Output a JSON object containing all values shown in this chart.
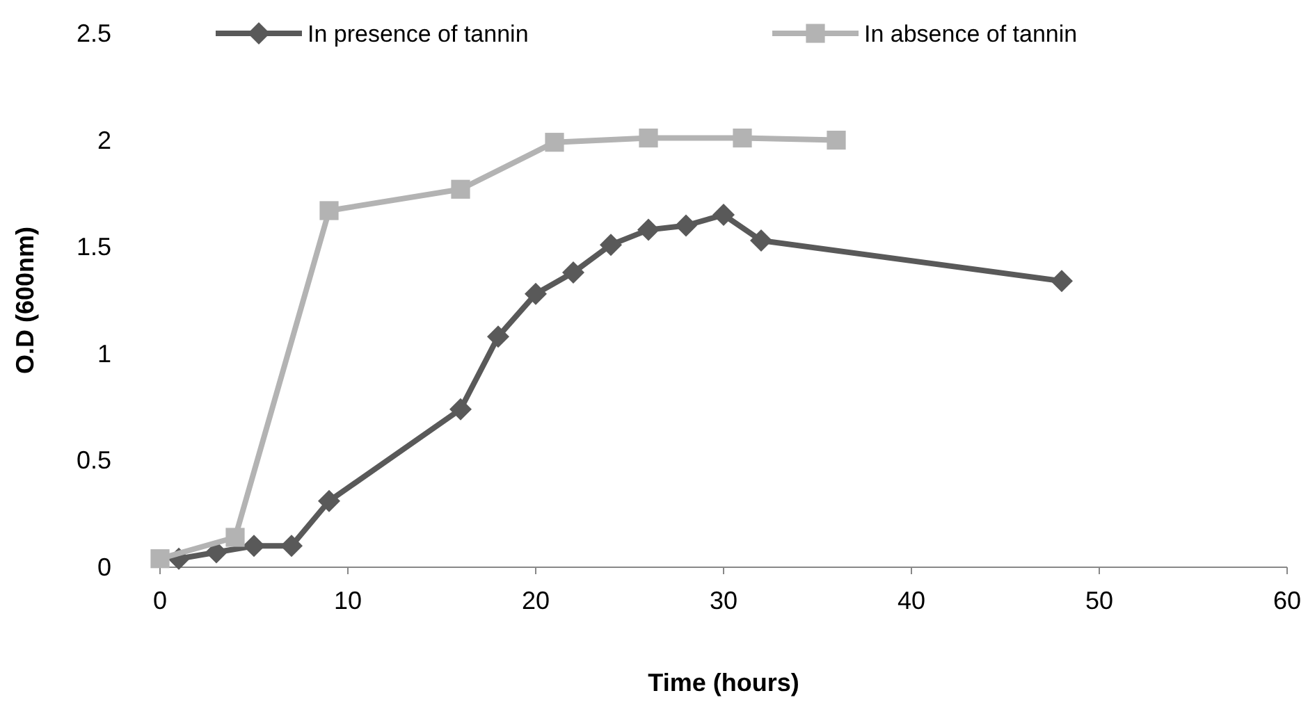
{
  "chart_data": {
    "type": "line",
    "xlabel": "Time (hours)",
    "ylabel": "O.D (600nm)",
    "xlim": [
      0,
      60
    ],
    "xticks": [
      0,
      10,
      20,
      30,
      40,
      50,
      60
    ],
    "ylim": [
      0,
      2.5
    ],
    "yticks": [
      0,
      0.5,
      1,
      1.5,
      2,
      2.5
    ],
    "grid": false,
    "legend": "top",
    "series": [
      {
        "name": "In presence of tannin",
        "color": "#595959",
        "marker": "diamond",
        "x": [
          1,
          3,
          5,
          7,
          9,
          16,
          18,
          20,
          22,
          24,
          26,
          28,
          30,
          32,
          48
        ],
        "values": [
          0.04,
          0.07,
          0.1,
          0.1,
          0.31,
          0.74,
          1.08,
          1.28,
          1.38,
          1.51,
          1.58,
          1.6,
          1.65,
          1.53,
          1.34
        ]
      },
      {
        "name": "In absence of tannin",
        "color": "#b3b3b3",
        "marker": "square",
        "x": [
          0,
          4,
          9,
          16,
          21,
          26,
          31,
          36
        ],
        "values": [
          0.04,
          0.14,
          1.67,
          1.77,
          1.99,
          2.01,
          2.01,
          2.0
        ]
      }
    ]
  }
}
